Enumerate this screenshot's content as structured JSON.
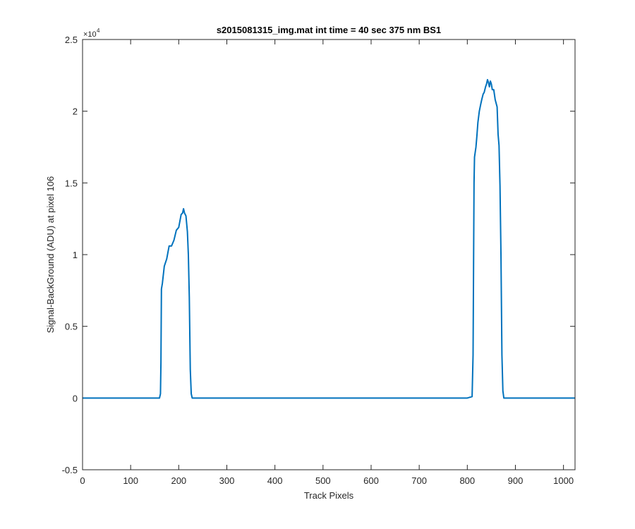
{
  "chart_data": {
    "type": "line",
    "title": "s2015081315_img.mat int time = 40 sec  375 nm BS1",
    "xlabel": "Track Pixels",
    "ylabel": "Signal-BackGround (ADU) at pixel 106",
    "xlim": [
      0,
      1024
    ],
    "ylim": [
      -5000,
      25000
    ],
    "y_exponent_label": "×10",
    "y_exponent_power": "4",
    "x_ticks": [
      0,
      100,
      200,
      300,
      400,
      500,
      600,
      700,
      800,
      900,
      1000
    ],
    "x_tick_labels": [
      "0",
      "100",
      "200",
      "300",
      "400",
      "500",
      "600",
      "700",
      "800",
      "900",
      "1000"
    ],
    "y_ticks": [
      -5000,
      0,
      5000,
      10000,
      15000,
      20000,
      25000
    ],
    "y_tick_labels": [
      "-0.5",
      "0",
      "0.5",
      "1",
      "1.5",
      "2",
      "2.5"
    ],
    "grid": false,
    "line_color": "#0072BD",
    "series": [
      {
        "x": [
          0,
          160,
          162,
          163,
          164,
          166,
          170,
          175,
          180,
          185,
          190,
          195,
          200,
          205,
          208,
          210,
          212,
          215,
          218,
          220,
          222,
          224,
          226,
          228,
          230,
          300,
          400,
          500,
          600,
          700,
          800,
          810,
          812,
          813,
          814,
          815,
          818,
          820,
          822,
          825,
          828,
          830,
          833,
          835,
          838,
          840,
          842,
          844,
          846,
          848,
          850,
          852,
          855,
          858,
          862,
          864,
          866,
          868,
          870,
          872,
          874,
          876,
          880,
          900,
          1000,
          1024
        ],
        "y": [
          0,
          0,
          300,
          2500,
          7600,
          8000,
          9200,
          9700,
          10600,
          10600,
          11000,
          11700,
          11900,
          12800,
          12900,
          13200,
          12900,
          12700,
          11600,
          10000,
          7000,
          2000,
          300,
          0,
          0,
          0,
          0,
          0,
          0,
          0,
          0,
          100,
          3000,
          9000,
          15000,
          16800,
          17500,
          18300,
          19200,
          20000,
          20500,
          20800,
          21200,
          21300,
          21700,
          21900,
          22200,
          22000,
          21700,
          22100,
          21900,
          21500,
          21500,
          20800,
          20300,
          18400,
          17600,
          14800,
          10000,
          3000,
          500,
          0,
          0,
          0,
          0,
          0
        ]
      }
    ]
  }
}
